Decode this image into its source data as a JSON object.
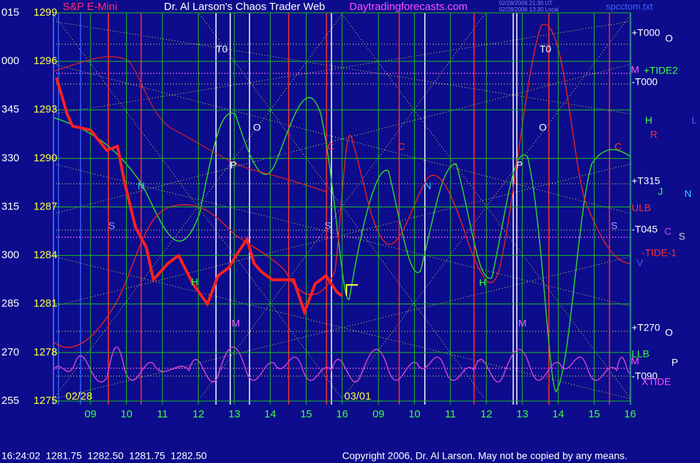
{
  "chart_data": {
    "type": "line",
    "instrument": "S&P E-Mini",
    "title": "Dr. Al Larson's Chaos Trader Web",
    "website": "Daytradingforecasts.com",
    "timestamps": [
      "02/28/2006 21:30 UT",
      "02/28/2006 13:30 Local"
    ],
    "file": "spcctom.txt",
    "ylim": [
      1275,
      1299
    ],
    "yticks": [
      1275,
      1278,
      1281,
      1284,
      1287,
      1290,
      1293,
      1296,
      1299
    ],
    "angle_labels": [
      "255",
      "270",
      "285",
      "300",
      "315",
      "330",
      "345",
      "000",
      "015"
    ],
    "xticks": [
      {
        "value": 9,
        "label": "09"
      },
      {
        "value": 10,
        "label": "10"
      },
      {
        "value": 11,
        "label": "11"
      },
      {
        "value": 12,
        "label": "12"
      },
      {
        "value": 13,
        "label": "13"
      },
      {
        "value": 14,
        "label": "14"
      },
      {
        "value": 15,
        "label": "15"
      },
      {
        "value": 16,
        "label": "16"
      }
    ],
    "x_labels_next_day": [
      "09",
      "10",
      "11",
      "12",
      "13",
      "14",
      "15",
      "16"
    ],
    "dates": [
      "02/28",
      "03/01"
    ],
    "grid": true,
    "color": "#ff2020",
    "x": [
      8.05,
      8.35,
      8.5,
      9,
      9.45,
      9.75,
      9.95,
      10.25,
      10.55,
      10.75,
      11.15,
      11.45,
      11.85,
      12.25,
      12.55,
      12.85,
      13.05,
      13.35,
      13.55,
      13.75,
      14.05,
      14.35,
      14.65,
      14.95,
      15.25,
      15.55,
      15.85,
      16
    ],
    "values": [
      1295,
      1292.75,
      1292,
      1291.75,
      1290.5,
      1290.75,
      1288.5,
      1285.75,
      1284.5,
      1282.5,
      1283.5,
      1284,
      1282.25,
      1281,
      1282.75,
      1283.25,
      1284,
      1285,
      1283.5,
      1283,
      1282.5,
      1282.5,
      1282.5,
      1280.5,
      1282.25,
      1282.75,
      1281.75,
      1281.5
    ],
    "right_labels": [
      "+T000",
      "O",
      "M",
      "+TIDE2",
      "-T000",
      "H",
      "R",
      "L",
      "+T315",
      "J",
      "N",
      "ULB",
      "-T045",
      "C",
      "S",
      "-TIDE-1",
      "V",
      "+T270",
      "O",
      "LLB",
      "M",
      "P",
      "-T090",
      "XTIDE"
    ],
    "plot_markers": [
      "T0",
      "T0",
      "O",
      "O",
      "P",
      "P",
      "N",
      "N",
      "S",
      "S",
      "S",
      "C",
      "C",
      "C",
      "H",
      "H",
      "M",
      "M"
    ],
    "status": "16:24:02  1281.75  1282.50  1281.75  1282.50",
    "copyright": "Copyright 2006, Dr. Al Larson. May not be copied by any means."
  }
}
